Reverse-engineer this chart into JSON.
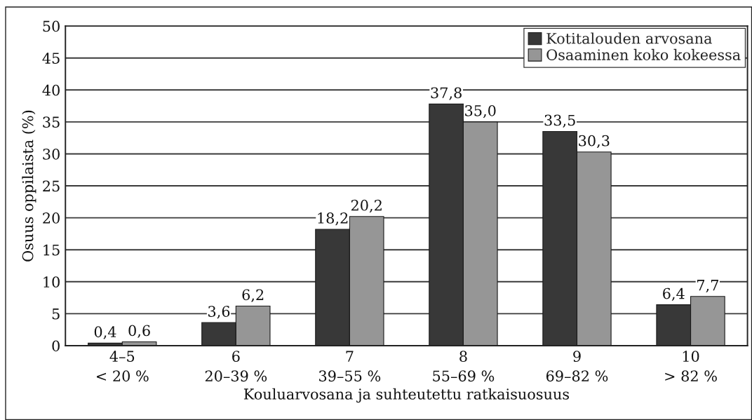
{
  "chart_data": {
    "type": "bar",
    "categories": [
      "4–5\n< 20 %",
      "6\n20–39 %",
      "7\n39–55 %",
      "8\n55–69 %",
      "9\n69–82 %",
      "10\n> 82 %"
    ],
    "series": [
      {
        "name": "Kotitalouden arvosana",
        "color": "#383838",
        "values": [
          0.4,
          3.6,
          18.2,
          37.8,
          33.5,
          6.4
        ],
        "value_labels": [
          "0,4",
          "3,6",
          "18,2",
          "37,8",
          "33,5",
          "6,4"
        ]
      },
      {
        "name": "Osaaminen koko kokeessa",
        "color": "#969696",
        "values": [
          0.6,
          6.2,
          20.2,
          35.0,
          30.3,
          7.7
        ],
        "value_labels": [
          "0,6",
          "6,2",
          "20,2",
          "35,0",
          "30,3",
          "7,7"
        ]
      }
    ],
    "xlabel": "Kouluarvosana ja suhteutettu ratkaisuosuus",
    "ylabel": "Osuus oppilaista (%)",
    "ylim": [
      0,
      50
    ],
    "yticks": [
      0,
      5,
      10,
      15,
      20,
      25,
      30,
      35,
      40,
      45,
      50
    ],
    "grid": "y",
    "legend": "top right"
  }
}
